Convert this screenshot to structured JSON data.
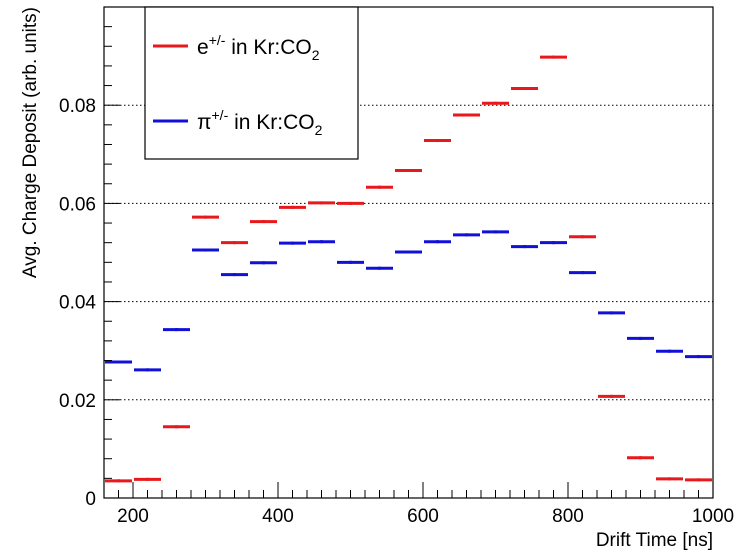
{
  "chart_data": {
    "type": "scatter",
    "xlabel": "Drift Time [ns]",
    "ylabel": "Avg. Charge Deposit (arb. units)",
    "xlim": [
      160,
      1000
    ],
    "ylim": [
      0,
      0.1
    ],
    "xticks": [
      200,
      400,
      600,
      800,
      1000
    ],
    "yticks": [
      0,
      0.02,
      0.04,
      0.06,
      0.08
    ],
    "ytick_labels": [
      "0",
      "0.02",
      "0.04",
      "0.06",
      "0.08"
    ],
    "grid": "horizontal dotted at y ticks",
    "legend_placement": "top-left",
    "bin_width": 40,
    "x": [
      180,
      220,
      260,
      300,
      340,
      380,
      420,
      460,
      500,
      540,
      580,
      620,
      660,
      700,
      740,
      780,
      820,
      860,
      900,
      940,
      980
    ],
    "series": [
      {
        "name": "e+/- in Kr:CO2",
        "label": "e",
        "superscript": "+/-",
        "text": " in Kr:CO",
        "subscript": "2",
        "color": "#e8191c",
        "values": [
          0.0035,
          0.0038,
          0.0145,
          0.0572,
          0.052,
          0.0563,
          0.0592,
          0.0601,
          0.06,
          0.0633,
          0.0667,
          0.0728,
          0.078,
          0.0804,
          0.0834,
          0.0898,
          0.0532,
          0.0207,
          0.0082,
          0.0039,
          0.0037
        ]
      },
      {
        "name": "π+/- in Kr:CO2",
        "label": "π",
        "superscript": "+/-",
        "text": " in Kr:CO",
        "subscript": "2",
        "color": "#1010d8",
        "values": [
          0.0277,
          0.0261,
          0.0343,
          0.0505,
          0.0455,
          0.0479,
          0.0519,
          0.0522,
          0.048,
          0.0468,
          0.0501,
          0.0522,
          0.0536,
          0.0542,
          0.0512,
          0.052,
          0.0459,
          0.0377,
          0.0325,
          0.0299,
          0.0288
        ]
      }
    ]
  }
}
